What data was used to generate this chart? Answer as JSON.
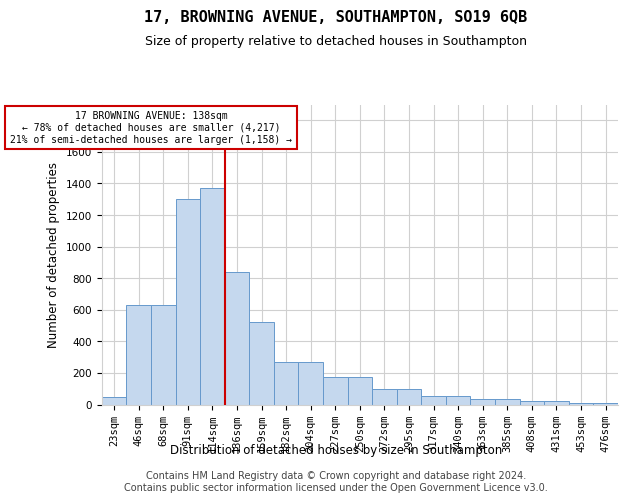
{
  "title": "17, BROWNING AVENUE, SOUTHAMPTON, SO19 6QB",
  "subtitle": "Size of property relative to detached houses in Southampton",
  "xlabel": "Distribution of detached houses by size in Southampton",
  "ylabel": "Number of detached properties",
  "categories": [
    "23sqm",
    "46sqm",
    "68sqm",
    "91sqm",
    "114sqm",
    "136sqm",
    "159sqm",
    "182sqm",
    "204sqm",
    "227sqm",
    "250sqm",
    "272sqm",
    "295sqm",
    "317sqm",
    "340sqm",
    "363sqm",
    "385sqm",
    "408sqm",
    "431sqm",
    "453sqm",
    "476sqm"
  ],
  "values": [
    50,
    630,
    630,
    1300,
    1370,
    840,
    520,
    270,
    270,
    175,
    175,
    100,
    100,
    55,
    55,
    35,
    35,
    20,
    20,
    12,
    12
  ],
  "bar_color": "#c5d8ee",
  "bar_edge_color": "#6699cc",
  "property_line_x": 4.5,
  "property_line_color": "#cc0000",
  "annotation_text": "17 BROWNING AVENUE: 138sqm\n← 78% of detached houses are smaller (4,217)\n21% of semi-detached houses are larger (1,158) →",
  "annotation_box_color": "#ffffff",
  "annotation_box_edge_color": "#cc0000",
  "ylim": [
    0,
    1900
  ],
  "yticks": [
    0,
    200,
    400,
    600,
    800,
    1000,
    1200,
    1400,
    1600,
    1800
  ],
  "footer_line1": "Contains HM Land Registry data © Crown copyright and database right 2024.",
  "footer_line2": "Contains public sector information licensed under the Open Government Licence v3.0.",
  "title_fontsize": 11,
  "subtitle_fontsize": 9,
  "axis_label_fontsize": 8.5,
  "tick_fontsize": 7.5,
  "annotation_fontsize": 7,
  "footer_fontsize": 7,
  "background_color": "#ffffff",
  "grid_color": "#d0d0d0"
}
